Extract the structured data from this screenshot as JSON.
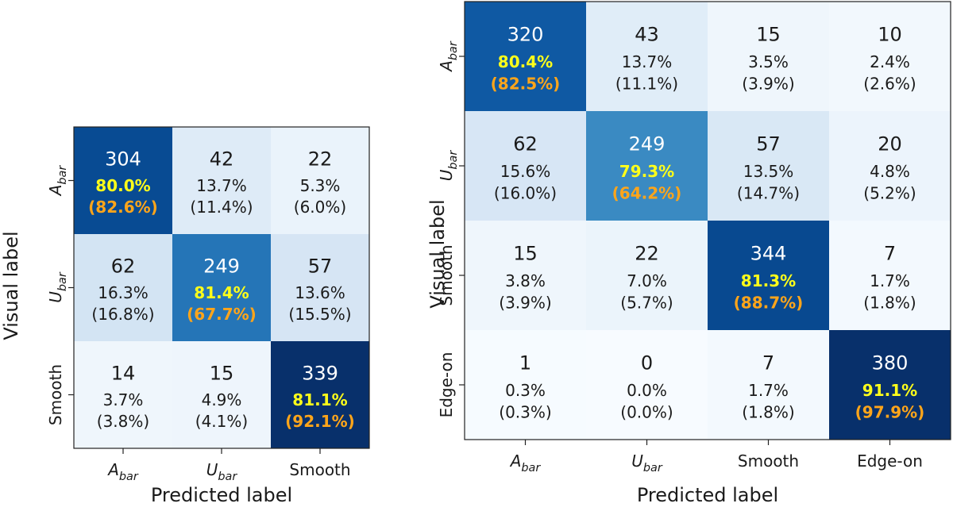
{
  "chart_data": [
    {
      "type": "heatmap",
      "xlabel": "Predicted label",
      "ylabel": "Visual label",
      "categories": [
        {
          "base": "A",
          "sub": "bar"
        },
        {
          "base": "U",
          "sub": "bar"
        },
        {
          "base": "Smooth",
          "sub": ""
        }
      ],
      "counts": [
        [
          304,
          42,
          22
        ],
        [
          62,
          249,
          57
        ],
        [
          14,
          15,
          339
        ]
      ],
      "row_pct": [
        [
          "80.0%",
          "13.7%",
          "5.3%"
        ],
        [
          "16.3%",
          "81.4%",
          "13.6%"
        ],
        [
          "3.7%",
          "4.9%",
          "81.1%"
        ]
      ],
      "col_pct": [
        [
          "(82.6%)",
          "(11.4%)",
          "(6.0%)"
        ],
        [
          "(16.8%)",
          "(67.7%)",
          "(15.5%)"
        ],
        [
          "(3.8%)",
          "(4.1%)",
          "(92.1%)"
        ]
      ]
    },
    {
      "type": "heatmap",
      "xlabel": "Predicted label",
      "ylabel": "Visual label",
      "categories": [
        {
          "base": "A",
          "sub": "bar"
        },
        {
          "base": "U",
          "sub": "bar"
        },
        {
          "base": "Smooth",
          "sub": ""
        },
        {
          "base": "Edge-on",
          "sub": ""
        }
      ],
      "counts": [
        [
          320,
          43,
          15,
          10
        ],
        [
          62,
          249,
          57,
          20
        ],
        [
          15,
          22,
          344,
          7
        ],
        [
          1,
          0,
          7,
          380
        ]
      ],
      "row_pct": [
        [
          "80.4%",
          "13.7%",
          "3.5%",
          "2.4%"
        ],
        [
          "15.6%",
          "79.3%",
          "13.5%",
          "4.8%"
        ],
        [
          "3.8%",
          "7.0%",
          "81.3%",
          "1.7%"
        ],
        [
          "0.3%",
          "0.0%",
          "1.7%",
          "91.1%"
        ]
      ],
      "col_pct": [
        [
          "(82.5%)",
          "(11.1%)",
          "(3.9%)",
          "(2.6%)"
        ],
        [
          "(16.0%)",
          "(64.2%)",
          "(14.7%)",
          "(5.2%)"
        ],
        [
          "(3.9%)",
          "(5.7%)",
          "(88.7%)",
          "(1.8%)"
        ],
        [
          "(0.3%)",
          "(0.0%)",
          "(1.8%)",
          "(97.9%)"
        ]
      ]
    }
  ],
  "colors": {
    "diag_row_pct": "#ffff1a",
    "diag_col_pct": "#ffa51a",
    "text_dark": "#1a1a1a",
    "text_light": "#ffffff",
    "cmap_low": "#f7fbff",
    "cmap_high": "#08306b"
  }
}
